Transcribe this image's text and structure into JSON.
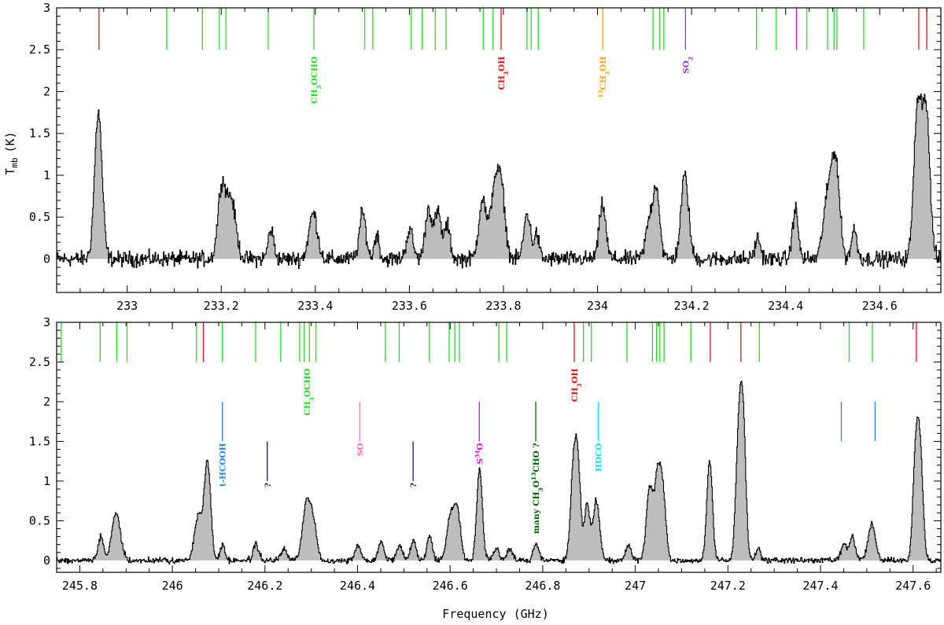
{
  "chart_data": [
    {
      "type": "line",
      "panel": "top",
      "xlim": [
        232.85,
        234.73
      ],
      "ylim": [
        -0.4,
        3.0
      ],
      "xticks": [
        233,
        233.2,
        233.4,
        233.6,
        233.8,
        234,
        234.2,
        234.4,
        234.6
      ],
      "xtick_labels": [
        "233",
        "233.2",
        "233.4",
        "233.6",
        "233.8",
        "234",
        "234.2",
        "234.4",
        "234.6"
      ],
      "yticks": [
        0,
        0.5,
        1,
        1.5,
        2,
        2.5,
        3
      ],
      "ytick_labels": [
        "0",
        "0.5",
        "1",
        "1.5",
        "2",
        "2.5",
        "3"
      ],
      "ylabel": "T",
      "ylabel_sub": "mb",
      "ylabel_unit": "(K)",
      "xlabel": "",
      "fill": "grey",
      "peaks": [
        {
          "x": 232.938,
          "y": 1.75,
          "w": 0.008
        },
        {
          "x": 233.2,
          "y": 0.82,
          "w": 0.008
        },
        {
          "x": 233.22,
          "y": 0.72,
          "w": 0.01
        },
        {
          "x": 233.305,
          "y": 0.35,
          "w": 0.006
        },
        {
          "x": 233.395,
          "y": 0.55,
          "w": 0.009
        },
        {
          "x": 233.5,
          "y": 0.55,
          "w": 0.007
        },
        {
          "x": 233.53,
          "y": 0.3,
          "w": 0.005
        },
        {
          "x": 233.6,
          "y": 0.35,
          "w": 0.007
        },
        {
          "x": 233.64,
          "y": 0.6,
          "w": 0.007
        },
        {
          "x": 233.66,
          "y": 0.55,
          "w": 0.007
        },
        {
          "x": 233.68,
          "y": 0.4,
          "w": 0.006
        },
        {
          "x": 233.755,
          "y": 0.72,
          "w": 0.008
        },
        {
          "x": 233.78,
          "y": 0.82,
          "w": 0.008
        },
        {
          "x": 233.795,
          "y": 0.82,
          "w": 0.008
        },
        {
          "x": 233.85,
          "y": 0.55,
          "w": 0.007
        },
        {
          "x": 233.87,
          "y": 0.3,
          "w": 0.005
        },
        {
          "x": 234.01,
          "y": 0.65,
          "w": 0.007
        },
        {
          "x": 234.11,
          "y": 0.45,
          "w": 0.008
        },
        {
          "x": 234.125,
          "y": 0.8,
          "w": 0.007
        },
        {
          "x": 234.185,
          "y": 1.0,
          "w": 0.008
        },
        {
          "x": 234.34,
          "y": 0.25,
          "w": 0.006
        },
        {
          "x": 234.42,
          "y": 0.6,
          "w": 0.006
        },
        {
          "x": 234.485,
          "y": 0.55,
          "w": 0.008
        },
        {
          "x": 234.5,
          "y": 0.95,
          "w": 0.008
        },
        {
          "x": 234.51,
          "y": 0.6,
          "w": 0.007
        },
        {
          "x": 234.545,
          "y": 0.35,
          "w": 0.006
        },
        {
          "x": 234.68,
          "y": 1.8,
          "w": 0.008
        },
        {
          "x": 234.698,
          "y": 1.75,
          "w": 0.008
        }
      ],
      "markers": [
        {
          "x": 232.94,
          "color": "#ee1111"
        },
        {
          "x": 233.084,
          "color": "#22dd22"
        },
        {
          "x": 233.16,
          "color": "#22dd22"
        },
        {
          "x": 233.196,
          "color": "#22dd22"
        },
        {
          "x": 233.21,
          "color": "#22dd22"
        },
        {
          "x": 233.3,
          "color": "#22dd22"
        },
        {
          "x": 233.397,
          "color": "#22dd22"
        },
        {
          "x": 233.505,
          "color": "#22dd22"
        },
        {
          "x": 233.522,
          "color": "#22dd22"
        },
        {
          "x": 233.604,
          "color": "#22dd22"
        },
        {
          "x": 233.627,
          "color": "#22dd22"
        },
        {
          "x": 233.655,
          "color": "#22dd22"
        },
        {
          "x": 233.678,
          "color": "#22dd22"
        },
        {
          "x": 233.757,
          "color": "#22dd22"
        },
        {
          "x": 233.778,
          "color": "#22dd22"
        },
        {
          "x": 233.795,
          "color": "#ee1111"
        },
        {
          "x": 233.85,
          "color": "#22dd22"
        },
        {
          "x": 233.859,
          "color": "#22dd22"
        },
        {
          "x": 233.874,
          "color": "#22dd22"
        },
        {
          "x": 234.011,
          "color": "#ffa500"
        },
        {
          "x": 234.118,
          "color": "#22dd22"
        },
        {
          "x": 234.132,
          "color": "#22dd22"
        },
        {
          "x": 234.141,
          "color": "#22dd22"
        },
        {
          "x": 234.187,
          "color": "#9b30ff"
        },
        {
          "x": 234.338,
          "color": "#22dd22"
        },
        {
          "x": 234.38,
          "color": "#22dd22"
        },
        {
          "x": 234.423,
          "color": "#dd11dd"
        },
        {
          "x": 234.445,
          "color": "#22dd22"
        },
        {
          "x": 234.489,
          "color": "#22dd22"
        },
        {
          "x": 234.503,
          "color": "#22dd22"
        },
        {
          "x": 234.509,
          "color": "#22dd22"
        },
        {
          "x": 234.566,
          "color": "#22dd22"
        },
        {
          "x": 234.683,
          "color": "#ee1111"
        },
        {
          "x": 234.7,
          "color": "#ee1111"
        }
      ],
      "labels": [
        {
          "x": 233.397,
          "text": "CH3OCHO",
          "color": "#22dd22",
          "y_top": 2.5
        },
        {
          "x": 233.795,
          "text": "CH3OH",
          "color": "#ee1111",
          "y_top": 2.5
        },
        {
          "x": 234.011,
          "text": "13CH3OH",
          "color": "#ffa500",
          "y_top": 2.5
        },
        {
          "x": 234.187,
          "text": "SO2",
          "color": "#9b30ff",
          "y_top": 2.5
        }
      ]
    },
    {
      "type": "line",
      "panel": "bottom",
      "xlim": [
        245.75,
        247.66
      ],
      "ylim": [
        -0.15,
        3.0
      ],
      "xticks": [
        245.8,
        246,
        246.2,
        246.4,
        246.6,
        246.8,
        247,
        247.2,
        247.4,
        247.6
      ],
      "xtick_labels": [
        "245.8",
        "246",
        "246.2",
        "246.4",
        "246.6",
        "246.8",
        "247",
        "247.2",
        "247.4",
        "247.6"
      ],
      "yticks": [
        0,
        0.5,
        1,
        1.5,
        2,
        2.5,
        3
      ],
      "ytick_labels": [
        "0",
        "0.5",
        "1",
        "1.5",
        "2",
        "2.5",
        "3"
      ],
      "xlabel": "Frequency (GHz)",
      "ylabel": "",
      "fill": "grey",
      "peaks": [
        {
          "x": 245.845,
          "y": 0.3,
          "w": 0.006
        },
        {
          "x": 245.878,
          "y": 0.6,
          "w": 0.009
        },
        {
          "x": 246.055,
          "y": 0.55,
          "w": 0.008
        },
        {
          "x": 246.075,
          "y": 1.25,
          "w": 0.007
        },
        {
          "x": 246.108,
          "y": 0.2,
          "w": 0.005
        },
        {
          "x": 246.18,
          "y": 0.2,
          "w": 0.006
        },
        {
          "x": 246.24,
          "y": 0.15,
          "w": 0.006
        },
        {
          "x": 246.29,
          "y": 0.75,
          "w": 0.009
        },
        {
          "x": 246.305,
          "y": 0.35,
          "w": 0.007
        },
        {
          "x": 246.4,
          "y": 0.2,
          "w": 0.006
        },
        {
          "x": 246.45,
          "y": 0.25,
          "w": 0.006
        },
        {
          "x": 246.49,
          "y": 0.2,
          "w": 0.006
        },
        {
          "x": 246.52,
          "y": 0.25,
          "w": 0.006
        },
        {
          "x": 246.555,
          "y": 0.3,
          "w": 0.006
        },
        {
          "x": 246.6,
          "y": 0.55,
          "w": 0.008
        },
        {
          "x": 246.615,
          "y": 0.6,
          "w": 0.007
        },
        {
          "x": 246.663,
          "y": 1.15,
          "w": 0.006
        },
        {
          "x": 246.7,
          "y": 0.15,
          "w": 0.006
        },
        {
          "x": 246.728,
          "y": 0.15,
          "w": 0.006
        },
        {
          "x": 246.785,
          "y": 0.2,
          "w": 0.006
        },
        {
          "x": 246.865,
          "y": 1.0,
          "w": 0.006
        },
        {
          "x": 246.875,
          "y": 1.2,
          "w": 0.006
        },
        {
          "x": 246.895,
          "y": 0.7,
          "w": 0.006
        },
        {
          "x": 246.915,
          "y": 0.75,
          "w": 0.007
        },
        {
          "x": 246.985,
          "y": 0.2,
          "w": 0.006
        },
        {
          "x": 247.03,
          "y": 0.9,
          "w": 0.007
        },
        {
          "x": 247.048,
          "y": 1.1,
          "w": 0.007
        },
        {
          "x": 247.06,
          "y": 0.7,
          "w": 0.006
        },
        {
          "x": 247.16,
          "y": 1.25,
          "w": 0.006
        },
        {
          "x": 247.222,
          "y": 1.4,
          "w": 0.006
        },
        {
          "x": 247.232,
          "y": 1.75,
          "w": 0.006
        },
        {
          "x": 247.265,
          "y": 0.15,
          "w": 0.005
        },
        {
          "x": 247.45,
          "y": 0.2,
          "w": 0.006
        },
        {
          "x": 247.468,
          "y": 0.3,
          "w": 0.006
        },
        {
          "x": 247.51,
          "y": 0.45,
          "w": 0.008
        },
        {
          "x": 247.605,
          "y": 1.3,
          "w": 0.006
        },
        {
          "x": 247.615,
          "y": 1.25,
          "w": 0.006
        }
      ],
      "markers": [
        {
          "x": 245.76,
          "color": "#22dd22"
        },
        {
          "x": 245.844,
          "color": "#22dd22"
        },
        {
          "x": 245.88,
          "color": "#22dd22"
        },
        {
          "x": 245.902,
          "color": "#22dd22"
        },
        {
          "x": 246.052,
          "color": "#22dd22"
        },
        {
          "x": 246.067,
          "color": "#ee1111"
        },
        {
          "x": 246.108,
          "color": "#22dd22"
        },
        {
          "x": 246.18,
          "color": "#22dd22"
        },
        {
          "x": 246.234,
          "color": "#22dd22"
        },
        {
          "x": 246.275,
          "color": "#22dd22"
        },
        {
          "x": 246.285,
          "color": "#22dd22"
        },
        {
          "x": 246.296,
          "color": "#22dd22"
        },
        {
          "x": 246.31,
          "color": "#22dd22"
        },
        {
          "x": 246.46,
          "color": "#22dd22"
        },
        {
          "x": 246.49,
          "color": "#22dd22"
        },
        {
          "x": 246.555,
          "color": "#22dd22"
        },
        {
          "x": 246.598,
          "color": "#22dd22"
        },
        {
          "x": 246.61,
          "color": "#22dd22"
        },
        {
          "x": 246.62,
          "color": "#22dd22"
        },
        {
          "x": 246.705,
          "color": "#22dd22"
        },
        {
          "x": 246.722,
          "color": "#22dd22"
        },
        {
          "x": 246.868,
          "color": "#ee1111"
        },
        {
          "x": 246.888,
          "color": "#22dd22"
        },
        {
          "x": 246.905,
          "color": "#22dd22"
        },
        {
          "x": 246.982,
          "color": "#22dd22"
        },
        {
          "x": 247.037,
          "color": "#22dd22"
        },
        {
          "x": 247.046,
          "color": "#22dd22"
        },
        {
          "x": 247.053,
          "color": "#22dd22"
        },
        {
          "x": 247.062,
          "color": "#22dd22"
        },
        {
          "x": 247.12,
          "color": "#22dd22"
        },
        {
          "x": 247.162,
          "color": "#ee1111"
        },
        {
          "x": 247.228,
          "color": "#ee1111"
        },
        {
          "x": 247.268,
          "color": "#22dd22"
        },
        {
          "x": 247.462,
          "color": "#22dd22"
        },
        {
          "x": 247.512,
          "color": "#22dd22"
        },
        {
          "x": 247.607,
          "color": "#ee1111"
        }
      ],
      "labels": [
        {
          "x": 246.108,
          "text": "t-HCOOH",
          "color": "#1e88e5",
          "y_top": 2.0
        },
        {
          "x": 246.205,
          "text": "?",
          "color": "#0b1a8a",
          "y_top": 1.5
        },
        {
          "x": 246.29,
          "text": "CH3OCHO",
          "color": "#22dd22",
          "y_top": 2.5
        },
        {
          "x": 246.405,
          "text": "SO",
          "color": "#ff69b4",
          "y_top": 2.0
        },
        {
          "x": 246.52,
          "text": "?",
          "color": "#0b1a8a",
          "y_top": 1.5
        },
        {
          "x": 246.663,
          "text": "S34O",
          "color": "#dd11dd",
          "y_top": 2.0
        },
        {
          "x": 246.785,
          "text": "many CH3O13CHO ?",
          "color": "#006400",
          "y_top": 2.0
        },
        {
          "x": 246.868,
          "text": "CH3OH",
          "color": "#ee1111",
          "y_top": 2.5
        },
        {
          "x": 246.92,
          "text": "HDCO",
          "color": "#00e5e5",
          "y_top": 2.0
        },
        {
          "x": 247.445,
          "text": "",
          "color": "#1e88e5",
          "y_top": 2.0
        },
        {
          "x": 247.518,
          "text": "",
          "color": "#1e88e5",
          "y_top": 2.0
        }
      ]
    }
  ]
}
